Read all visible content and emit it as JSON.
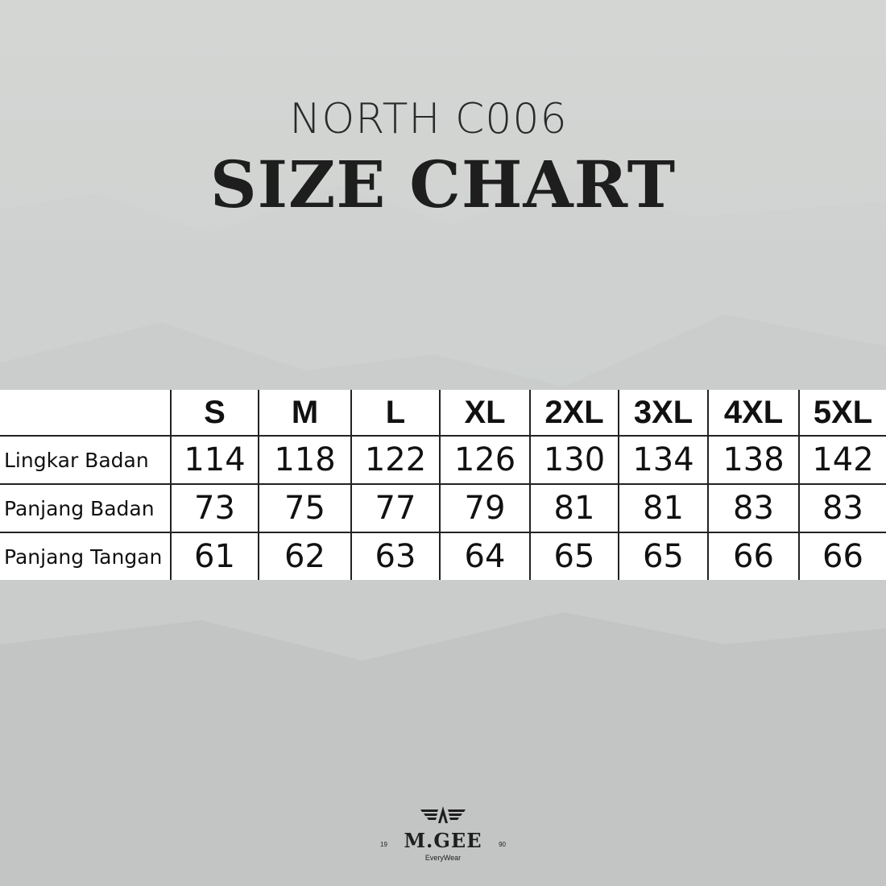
{
  "header": {
    "subtitle": "NORTH C006",
    "title": "SIZE CHART"
  },
  "table": {
    "sizes": [
      "S",
      "M",
      "L",
      "XL",
      "2XL",
      "3XL",
      "4XL",
      "5XL"
    ],
    "rows": [
      {
        "label": "Lingkar Badan",
        "values": [
          "114",
          "118",
          "122",
          "126",
          "130",
          "134",
          "138",
          "142"
        ]
      },
      {
        "label": "Panjang Badan",
        "values": [
          "73",
          "75",
          "77",
          "79",
          "81",
          "81",
          "83",
          "83"
        ]
      },
      {
        "label": "Panjang Tangan",
        "values": [
          "61",
          "62",
          "63",
          "64",
          "65",
          "65",
          "66",
          "66"
        ]
      }
    ]
  },
  "logo": {
    "brand": "M.GEE",
    "year_left": "19",
    "year_right": "90",
    "tagline": "EveryWear"
  }
}
